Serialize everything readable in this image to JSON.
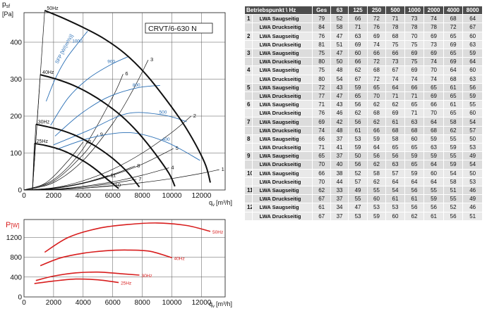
{
  "chart_data": [
    {
      "type": "line",
      "model_label": "CRVT/6-630 N",
      "ylabel_main": "p",
      "ylabel_sub": "sf",
      "yunit": "[Pa]",
      "xlabel_main": "q",
      "xlabel_sub": "v",
      "xunit": "[m³/h]",
      "xlim": [
        0,
        13600
      ],
      "ylim": [
        0,
        480
      ],
      "xticks": [
        0,
        2000,
        4000,
        6000,
        8000,
        10000,
        12000
      ],
      "xtick_labels": [
        "0",
        "2000",
        "4000",
        "6000",
        "8000",
        "10000",
        "12000"
      ],
      "yticks": [
        0,
        100,
        200,
        300,
        400
      ],
      "ytick_labels": [
        "0",
        "100",
        "200",
        "300",
        "400"
      ],
      "grid": true,
      "speed_curves": [
        {
          "name": "50Hz",
          "x": [
            1400,
            2600,
            4000,
            5400,
            6800,
            8200,
            9600,
            11000,
            12200,
            12600
          ],
          "y": [
            486,
            466,
            440,
            410,
            370,
            315,
            245,
            165,
            75,
            20
          ]
        },
        {
          "name": "40Hz",
          "x": [
            1100,
            2200,
            3300,
            4400,
            5500,
            6600,
            7700,
            8800,
            9800,
            10200
          ],
          "y": [
            312,
            300,
            284,
            262,
            234,
            200,
            156,
            102,
            45,
            10
          ]
        },
        {
          "name": "30Hz",
          "x": [
            800,
            1600,
            2500,
            3400,
            4300,
            5200,
            6100,
            7000,
            7800
          ],
          "y": [
            178,
            171,
            162,
            149,
            131,
            109,
            82,
            48,
            8
          ]
        },
        {
          "name": "25Hz",
          "x": [
            700,
            1400,
            2100,
            2800,
            3500,
            4200,
            4900,
            5600,
            6400
          ],
          "y": [
            126,
            121,
            114,
            104,
            90,
            74,
            54,
            30,
            4
          ]
        }
      ],
      "sfp_label": "SFP [W/(m³/s)]",
      "sfp_curves": [
        {
          "name": "1000",
          "x": [
            1500,
            2100,
            2800,
            3600,
            4300
          ],
          "y": [
            240,
            300,
            352,
            395,
            430
          ]
        },
        {
          "name": "900",
          "x": [
            1800,
            3000,
            4400,
            5900,
            7100
          ],
          "y": [
            175,
            250,
            303,
            340,
            362
          ]
        },
        {
          "name": "800",
          "x": [
            2100,
            3800,
            5600,
            7600,
            9200
          ],
          "y": [
            146,
            205,
            250,
            276,
            283
          ]
        },
        {
          "name": "500",
          "x": [
            2000,
            4400,
            7000,
            9400,
            11000
          ],
          "y": [
            122,
            162,
            207,
            203,
            185
          ]
        },
        {
          "name": "400",
          "x": [
            2200,
            4600,
            7200,
            9600,
            11900
          ],
          "y": [
            110,
            142,
            155,
            130,
            80
          ]
        }
      ],
      "system_curves": [
        {
          "name": "1",
          "x": [
            0,
            2000,
            4000,
            6000,
            8000,
            10000,
            12000,
            13200
          ],
          "y": [
            0,
            1,
            5,
            11,
            20,
            31,
            45,
            55
          ]
        },
        {
          "name": "2",
          "x": [
            0,
            2000,
            4000,
            6000,
            8000,
            10000,
            11300
          ],
          "y": [
            0,
            6,
            25,
            56,
            100,
            156,
            200
          ]
        },
        {
          "name": "3",
          "x": [
            0,
            2000,
            4000,
            6000,
            7300,
            8400
          ],
          "y": [
            0,
            20,
            80,
            180,
            266,
            352
          ]
        },
        {
          "name": "4",
          "x": [
            0,
            2000,
            4000,
            6000,
            8000,
            9800
          ],
          "y": [
            0,
            2,
            10,
            22,
            40,
            60
          ]
        },
        {
          "name": "5",
          "x": [
            0,
            2000,
            4000,
            6000,
            8000,
            10100
          ],
          "y": [
            0,
            4,
            18,
            40,
            70,
            112
          ]
        },
        {
          "name": "6",
          "x": [
            0,
            2000,
            4000,
            6000,
            6700
          ],
          "y": [
            0,
            28,
            112,
            252,
            314
          ]
        },
        {
          "name": "7",
          "x": [
            0,
            2000,
            4000,
            6000,
            7600
          ],
          "y": [
            0,
            2,
            8,
            18,
            29
          ]
        },
        {
          "name": "8",
          "x": [
            0,
            2000,
            4000,
            6000,
            7500
          ],
          "y": [
            0,
            5,
            19,
            42,
            65
          ]
        },
        {
          "name": "9",
          "x": [
            0,
            2000,
            4000,
            5000
          ],
          "y": [
            0,
            24,
            96,
            150
          ]
        },
        {
          "name": "10",
          "x": [
            0,
            2000,
            4000,
            6000
          ],
          "y": [
            0,
            1,
            5,
            12
          ]
        },
        {
          "name": "11",
          "x": [
            0,
            2000,
            4000,
            5700
          ],
          "y": [
            0,
            5,
            19,
            39
          ]
        },
        {
          "name": "12",
          "x": [
            0,
            1500,
            3000,
            4000
          ],
          "y": [
            0,
            20,
            80,
            130
          ]
        }
      ]
    },
    {
      "type": "line",
      "ylabel_main": "P",
      "yunit": "[W]",
      "xlabel_main": "q",
      "xlabel_sub": "v",
      "xunit": "[m³/h]",
      "xlim": [
        0,
        13600
      ],
      "ylim": [
        0,
        1560
      ],
      "xticks": [
        0,
        2000,
        4000,
        6000,
        8000,
        10000,
        12000
      ],
      "xtick_labels": [
        "0",
        "2000",
        "4000",
        "6000",
        "8000",
        "10000",
        "12000"
      ],
      "yticks": [
        0,
        400,
        800,
        1200
      ],
      "ytick_labels": [
        "0",
        "400",
        "800",
        "1200"
      ],
      "grid": true,
      "series": [
        {
          "name": "50Hz",
          "x": [
            1400,
            3000,
            5000,
            7000,
            9000,
            11000,
            12600
          ],
          "y": [
            900,
            1200,
            1380,
            1460,
            1490,
            1440,
            1320
          ]
        },
        {
          "name": "40Hz",
          "x": [
            1100,
            2500,
            4000,
            5500,
            7000,
            8500,
            10000
          ],
          "y": [
            630,
            790,
            880,
            930,
            945,
            920,
            790
          ]
        },
        {
          "name": "30Hz",
          "x": [
            800,
            2000,
            3500,
            5000,
            6500,
            7800
          ],
          "y": [
            330,
            420,
            485,
            500,
            470,
            440
          ]
        },
        {
          "name": "25Hz",
          "x": [
            700,
            2000,
            3500,
            5000,
            6400
          ],
          "y": [
            270,
            320,
            360,
            345,
            290
          ]
        }
      ]
    }
  ],
  "table": {
    "header": [
      "Betriebspunkt \\ Hz",
      "Ges",
      "63",
      "125",
      "250",
      "500",
      "1000",
      "2000",
      "4000",
      "8000"
    ],
    "rows": [
      {
        "bp": "1",
        "typ": "LWA Saugseitig",
        "v": [
          "79",
          "52",
          "66",
          "72",
          "71",
          "73",
          "74",
          "68",
          "64"
        ]
      },
      {
        "bp": "",
        "typ": "LWA Druckseitig",
        "v": [
          "84",
          "58",
          "71",
          "76",
          "78",
          "78",
          "78",
          "72",
          "67"
        ]
      },
      {
        "bp": "2",
        "typ": "LWA Saugseitig",
        "v": [
          "76",
          "47",
          "63",
          "69",
          "68",
          "70",
          "69",
          "65",
          "60"
        ]
      },
      {
        "bp": "",
        "typ": "LWA Druckseitig",
        "v": [
          "81",
          "51",
          "69",
          "74",
          "75",
          "75",
          "73",
          "69",
          "63"
        ]
      },
      {
        "bp": "3",
        "typ": "LWA Saugseitig",
        "v": [
          "75",
          "47",
          "60",
          "66",
          "66",
          "69",
          "69",
          "65",
          "59"
        ]
      },
      {
        "bp": "",
        "typ": "LWA Druckseitig",
        "v": [
          "80",
          "50",
          "66",
          "72",
          "73",
          "75",
          "74",
          "69",
          "64"
        ]
      },
      {
        "bp": "4",
        "typ": "LWA Saugseitig",
        "v": [
          "75",
          "48",
          "62",
          "68",
          "67",
          "69",
          "70",
          "64",
          "60"
        ]
      },
      {
        "bp": "",
        "typ": "LWA Druckseitig",
        "v": [
          "80",
          "54",
          "67",
          "72",
          "74",
          "74",
          "74",
          "68",
          "63"
        ]
      },
      {
        "bp": "5",
        "typ": "LWA Saugseitig",
        "v": [
          "72",
          "43",
          "59",
          "65",
          "64",
          "66",
          "65",
          "61",
          "56"
        ]
      },
      {
        "bp": "",
        "typ": "LWA Druckseitig",
        "v": [
          "77",
          "47",
          "65",
          "70",
          "71",
          "71",
          "69",
          "65",
          "59"
        ]
      },
      {
        "bp": "6",
        "typ": "LWA Saugseitig",
        "v": [
          "71",
          "43",
          "56",
          "62",
          "62",
          "65",
          "66",
          "61",
          "55"
        ]
      },
      {
        "bp": "",
        "typ": "LWA Druckseitig",
        "v": [
          "76",
          "46",
          "62",
          "68",
          "69",
          "71",
          "70",
          "65",
          "60"
        ]
      },
      {
        "bp": "7",
        "typ": "LWA Saugseitig",
        "v": [
          "69",
          "42",
          "56",
          "62",
          "61",
          "63",
          "64",
          "58",
          "54"
        ]
      },
      {
        "bp": "",
        "typ": "LWA Druckseitig",
        "v": [
          "74",
          "48",
          "61",
          "66",
          "68",
          "68",
          "68",
          "62",
          "57"
        ]
      },
      {
        "bp": "8",
        "typ": "LWA Saugseitig",
        "v": [
          "66",
          "37",
          "53",
          "59",
          "58",
          "60",
          "59",
          "55",
          "50"
        ]
      },
      {
        "bp": "",
        "typ": "LWA Druckseitig",
        "v": [
          "71",
          "41",
          "59",
          "64",
          "65",
          "65",
          "63",
          "59",
          "53"
        ]
      },
      {
        "bp": "9",
        "typ": "LWA Saugseitig",
        "v": [
          "65",
          "37",
          "50",
          "56",
          "56",
          "59",
          "59",
          "55",
          "49"
        ]
      },
      {
        "bp": "",
        "typ": "LWA Druckseitig",
        "v": [
          "70",
          "40",
          "56",
          "62",
          "63",
          "65",
          "64",
          "59",
          "54"
        ]
      },
      {
        "bp": "10",
        "typ": "LWA Saugseitig",
        "v": [
          "66",
          "38",
          "52",
          "58",
          "57",
          "59",
          "60",
          "54",
          "50"
        ]
      },
      {
        "bp": "",
        "typ": "LWA Druckseitig",
        "v": [
          "70",
          "44",
          "57",
          "62",
          "64",
          "64",
          "64",
          "58",
          "53"
        ]
      },
      {
        "bp": "11",
        "typ": "LWA Saugseitig",
        "v": [
          "62",
          "33",
          "49",
          "55",
          "54",
          "56",
          "55",
          "51",
          "46"
        ]
      },
      {
        "bp": "",
        "typ": "LWA Druckseitig",
        "v": [
          "67",
          "37",
          "55",
          "60",
          "61",
          "61",
          "59",
          "55",
          "49"
        ]
      },
      {
        "bp": "12",
        "typ": "LWA Saugseitig",
        "v": [
          "61",
          "34",
          "47",
          "53",
          "53",
          "56",
          "56",
          "52",
          "46"
        ]
      },
      {
        "bp": "",
        "typ": "LWA Druckseitig",
        "v": [
          "67",
          "37",
          "53",
          "59",
          "60",
          "62",
          "61",
          "56",
          "51"
        ]
      }
    ]
  },
  "colors": {
    "speed": "#111111",
    "sfp": "#2a6fb5",
    "system": "#111111",
    "power": "#d81e1e",
    "grid": "#555555",
    "table_header": "#4d4d4d",
    "table_row": "#dcdcdc",
    "table_row_alt": "#e9e9e9"
  }
}
